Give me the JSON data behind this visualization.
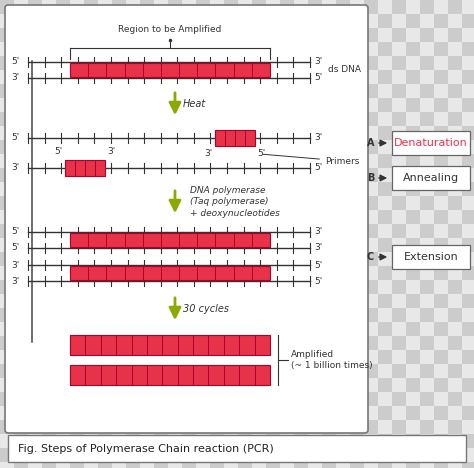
{
  "bg_color": "#d0d0d0",
  "main_box_bg": "#ffffff",
  "right_bg": "#d8d8d8",
  "dna_color": "#e8324a",
  "dna_border": "#b0002a",
  "line_color": "#333333",
  "arrow_color": "#8aaa00",
  "title": "Fig. Steps of Polymerase Chain reaction (PCR)",
  "step_labels": [
    "Denaturation",
    "Annealing",
    "Extension"
  ],
  "step_letters": [
    "A",
    "B",
    "C"
  ],
  "heat_label": "Heat",
  "dna_poly_label": "DNA polymerase\n(Taq polymerase)\n+ deoxynucleotides",
  "cycles_label": "30 cycles",
  "amplified_label": "Amplified\n(~ 1 billion times)",
  "region_label": "Region to be Amplified",
  "primers_label": "Primers",
  "ds_dna_label": "ds DNA"
}
